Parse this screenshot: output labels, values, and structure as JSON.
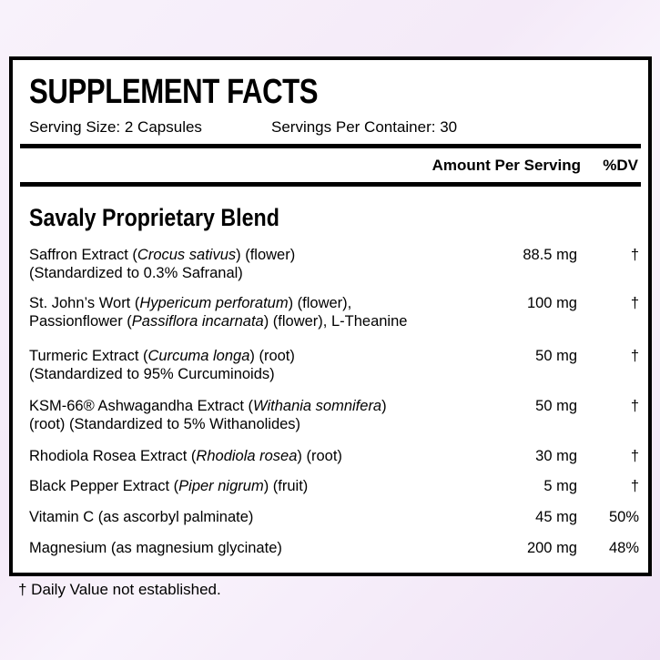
{
  "title": "SUPPLEMENT FACTS",
  "serving_size": "Serving Size: 2 Capsules",
  "servings_per_container": "Servings Per Container: 30",
  "header": {
    "amount": "Amount Per Serving",
    "dv": "%DV"
  },
  "blend_title": "Savaly Proprietary Blend",
  "rows": [
    {
      "line1": [
        "Saffron Extract (",
        "Crocus sativus",
        ") (flower)"
      ],
      "line2": [
        "(Standardized to 0.3% Safranal)"
      ],
      "amount": "88.5 mg",
      "dv": "†"
    },
    {
      "line1": [
        "St. John’s Wort (",
        "Hypericum perforatum",
        ") (flower),"
      ],
      "line2": [
        "Passionflower (",
        "Passiflora incarnata",
        ") (flower), L-Theanine"
      ],
      "amount": "100 mg",
      "dv": "†"
    },
    {
      "line1": [
        "Turmeric Extract (",
        "Curcuma longa",
        ") (root)"
      ],
      "line2": [
        "(Standardized to 95% Curcuminoids)"
      ],
      "amount": "50 mg",
      "dv": "†"
    },
    {
      "line1": [
        "KSM-66® Ashwagandha Extract (",
        "Withania somnifera",
        ")"
      ],
      "line2": [
        "(root) (Standardized to 5% Withanolides)"
      ],
      "amount": "50 mg",
      "dv": "†"
    },
    {
      "line1": [
        "Rhodiola Rosea Extract (",
        "Rhodiola rosea",
        ") (root)"
      ],
      "amount": "30 mg",
      "dv": "†"
    },
    {
      "line1": [
        "Black Pepper Extract (",
        "Piper nigrum",
        ") (fruit)"
      ],
      "amount": "5 mg",
      "dv": "†"
    },
    {
      "line1": [
        "Vitamin C (as ascorbyl palminate)"
      ],
      "amount": "45 mg",
      "dv": "50%"
    },
    {
      "line1": [
        "Magnesium (as magnesium glycinate)"
      ],
      "amount": "200 mg",
      "dv": "48%"
    }
  ],
  "footnote": "† Daily Value not established."
}
